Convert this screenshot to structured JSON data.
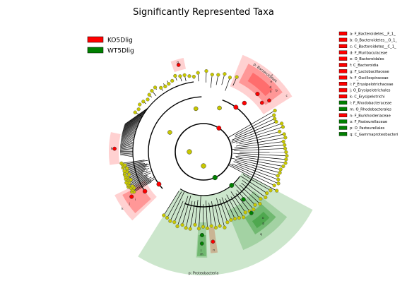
{
  "chart_data": {
    "type": "cladogram",
    "title": "Significantly Represented Taxa",
    "groups": [
      {
        "name": "KO5Dlig",
        "color": "#ff0000"
      },
      {
        "name": "WT5Dlig",
        "color": "#008000"
      }
    ],
    "taxa_key": [
      {
        "letter": "a",
        "text": "a: F_Bacteroidetes__F_1_",
        "group": "KO5Dlig"
      },
      {
        "letter": "b",
        "text": "b: O_Bacteroidetes__O_1_",
        "group": "KO5Dlig"
      },
      {
        "letter": "c",
        "text": "c: C_Bacteroidetes__C_1_",
        "group": "KO5Dlig"
      },
      {
        "letter": "d",
        "text": "d: F_Muribaculaceae",
        "group": "KO5Dlig"
      },
      {
        "letter": "e",
        "text": "e: O_Bacteroidales",
        "group": "KO5Dlig"
      },
      {
        "letter": "f",
        "text": "f: C_Bacteroidia",
        "group": "KO5Dlig"
      },
      {
        "letter": "g",
        "text": "g: F_Lactobacillaceae",
        "group": "KO5Dlig"
      },
      {
        "letter": "h",
        "text": "h: F_Oscillospiraceae",
        "group": "KO5Dlig"
      },
      {
        "letter": "i",
        "text": "i: F_Erysipelotrichaceae",
        "group": "KO5Dlig"
      },
      {
        "letter": "j",
        "text": "j: O_Erysipelotrichales",
        "group": "KO5Dlig"
      },
      {
        "letter": "k",
        "text": "k: C_Erysipelotrichi",
        "group": "KO5Dlig"
      },
      {
        "letter": "l",
        "text": "l: F_Rhodobacteraceae",
        "group": "WT5Dlig"
      },
      {
        "letter": "m",
        "text": "m: O_Rhodobacterales",
        "group": "WT5Dlig"
      },
      {
        "letter": "n",
        "text": "n: F_Burkholderiaceae",
        "group": "KO5Dlig"
      },
      {
        "letter": "o",
        "text": "o: F_Pasteurellaceae",
        "group": "WT5Dlig"
      },
      {
        "letter": "p",
        "text": "p: O_Pasteurellales",
        "group": "WT5Dlig"
      },
      {
        "letter": "q",
        "text": "q: C_Gammaproteobacteri",
        "group": "WT5Dlig"
      }
    ],
    "phylum_labels": [
      "p: Bacteroidetes",
      "p: Proteobacteria"
    ],
    "highlight_letters": [
      "f",
      "e",
      "d",
      "c",
      "b",
      "a",
      "g",
      "h",
      "k",
      "j",
      "i",
      "l",
      "m",
      "n",
      "o",
      "p",
      "q"
    ],
    "colors": {
      "ko": "#ff0000",
      "wt": "#008000",
      "neutral": "#c8c800"
    }
  }
}
